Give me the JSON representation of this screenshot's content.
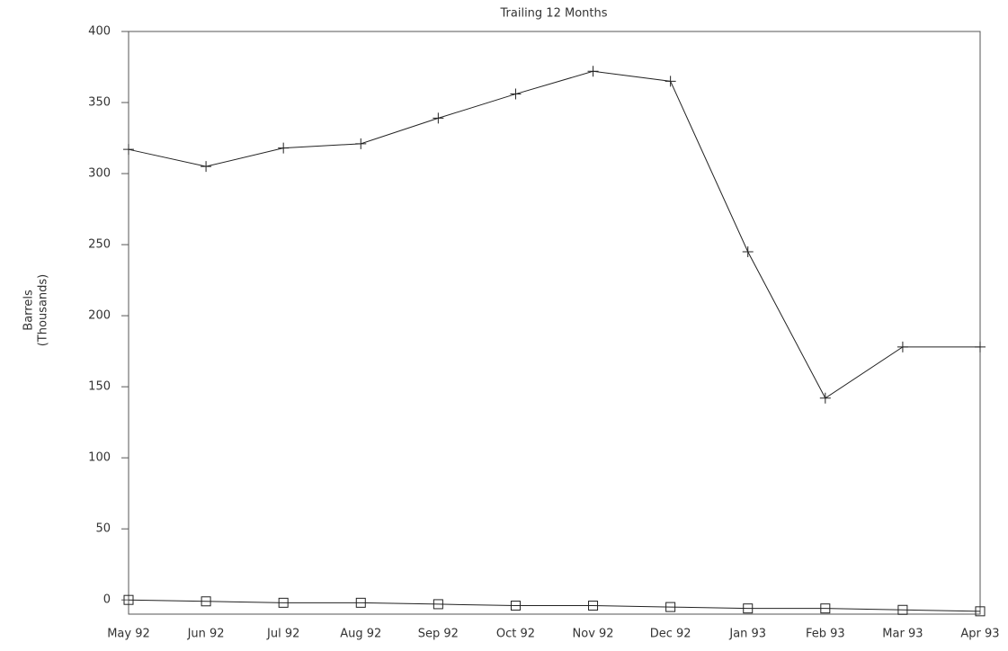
{
  "chart_data": {
    "type": "line",
    "title": "Trailing 12 Months",
    "ylabel": [
      "Barrels",
      "(Thousands)"
    ],
    "categories": [
      "May 92",
      "Jun 92",
      "Jul 92",
      "Aug 92",
      "Sep 92",
      "Oct 92",
      "Nov 92",
      "Dec 92",
      "Jan 93",
      "Feb 93",
      "Mar 93",
      "Apr 93"
    ],
    "series": [
      {
        "color": "#222222",
        "marker": "plus",
        "values": [
          317,
          305,
          318,
          321,
          339,
          356,
          372,
          365,
          245,
          142,
          178,
          178
        ]
      },
      {
        "color": "#222222",
        "marker": "square",
        "values": [
          0,
          -1,
          -2,
          -2,
          -3,
          -4,
          -4,
          -5,
          -6,
          -6,
          -7,
          -8
        ]
      }
    ],
    "ylim": [
      -10,
      400
    ],
    "yticks": [
      0,
      50,
      100,
      150,
      200,
      250,
      300,
      350,
      400
    ],
    "grid": false
  }
}
